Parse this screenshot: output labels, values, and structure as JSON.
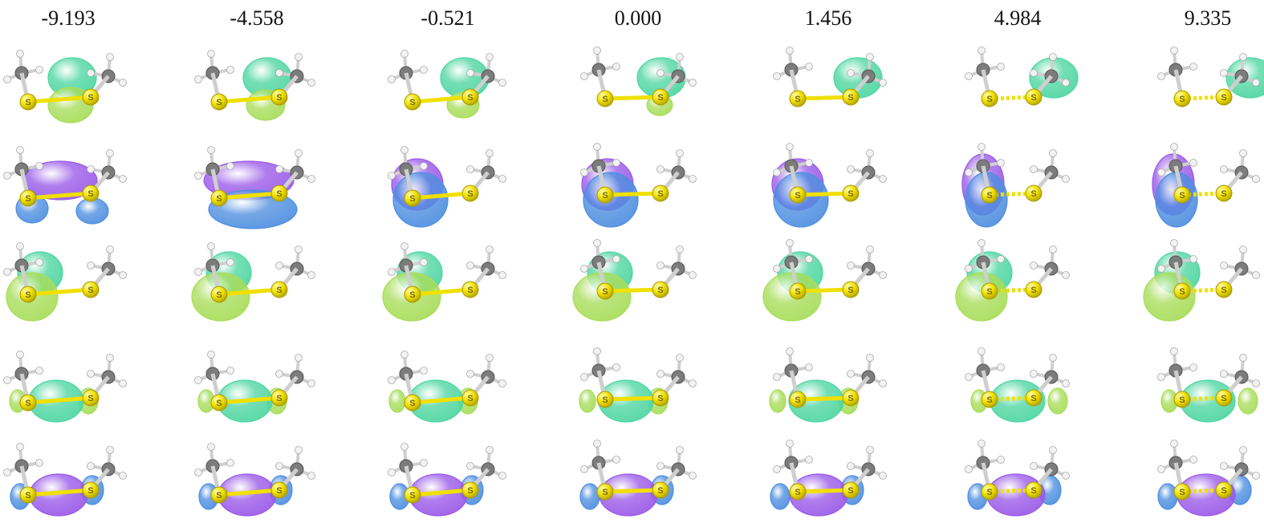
{
  "column_labels": [
    "-9.193",
    "-4.558",
    "-0.521",
    "0.000",
    "1.456",
    "4.984",
    "9.335"
  ],
  "atom_label": "S",
  "colors": {
    "green_lobe": "#4fd6a2",
    "lime_lobe": "#a8dd5a",
    "purple_lobe": "#9a5ae8",
    "blue_lobe": "#4f8fe0",
    "sulfur": "#f0e000",
    "carbon": "#7c7c7c",
    "hydrogen": "#f2f2f2"
  },
  "rows": [
    {
      "name": "row-1",
      "lobe_a": "green_lobe",
      "lobe_b": "lime_lobe"
    },
    {
      "name": "row-2",
      "lobe_a": "purple_lobe",
      "lobe_b": "blue_lobe"
    },
    {
      "name": "row-3",
      "lobe_a": "green_lobe",
      "lobe_b": "lime_lobe"
    },
    {
      "name": "row-4",
      "lobe_a": "green_lobe",
      "lobe_b": "lime_lobe"
    },
    {
      "name": "row-5",
      "lobe_a": "purple_lobe",
      "lobe_b": "blue_lobe"
    }
  ]
}
